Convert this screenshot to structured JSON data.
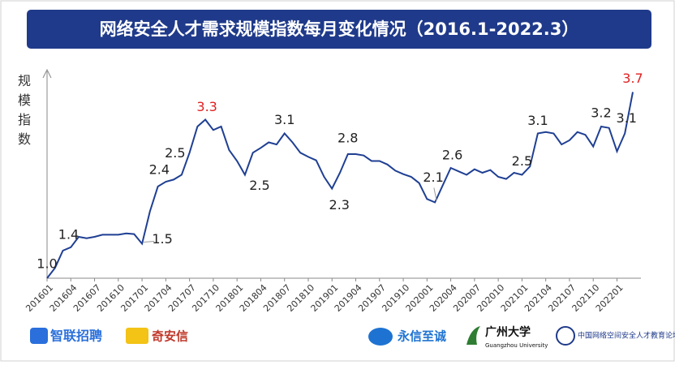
{
  "chart_data": {
    "type": "line",
    "title": "网络安全人才需求规模指数每月变化情况（2016.1-2022.3）",
    "y_label": "规模指数",
    "categories": [
      "201601",
      null,
      null,
      "201604",
      null,
      null,
      "201607",
      null,
      null,
      "201610",
      null,
      null,
      "201701",
      null,
      null,
      "201704",
      null,
      null,
      "201707",
      null,
      null,
      "201710",
      null,
      null,
      "201801",
      null,
      null,
      "201804",
      null,
      null,
      "201807",
      null,
      null,
      "201810",
      null,
      null,
      "201901",
      null,
      null,
      "201904",
      null,
      null,
      "201907",
      null,
      null,
      "201910",
      null,
      null,
      "202001",
      null,
      null,
      "202004",
      null,
      null,
      "202007",
      null,
      null,
      "202010",
      null,
      null,
      "202101",
      null,
      null,
      "202104",
      null,
      null,
      "202107",
      null,
      null,
      "202110",
      null,
      null,
      "202201",
      null,
      null
    ],
    "values": [
      1.0,
      1.15,
      1.4,
      1.45,
      1.6,
      1.58,
      1.6,
      1.63,
      1.63,
      1.63,
      1.65,
      1.64,
      1.5,
      1.97,
      2.33,
      2.4,
      2.43,
      2.5,
      2.82,
      3.2,
      3.3,
      3.15,
      3.2,
      2.86,
      2.7,
      2.5,
      2.82,
      2.89,
      2.97,
      2.94,
      3.1,
      2.97,
      2.82,
      2.76,
      2.71,
      2.47,
      2.3,
      2.53,
      2.8,
      2.8,
      2.78,
      2.7,
      2.7,
      2.65,
      2.56,
      2.51,
      2.47,
      2.38,
      2.15,
      2.1,
      2.35,
      2.6,
      2.55,
      2.5,
      2.58,
      2.53,
      2.57,
      2.47,
      2.44,
      2.53,
      2.5,
      2.62,
      3.1,
      3.12,
      3.1,
      2.94,
      3.0,
      3.12,
      3.08,
      2.91,
      3.2,
      3.18,
      2.84,
      3.1,
      3.7
    ],
    "value_labels": [
      "1.0",
      null,
      "1.4",
      null,
      null,
      null,
      null,
      null,
      null,
      null,
      null,
      null,
      "1.5",
      null,
      null,
      "2.4",
      null,
      "2.5",
      null,
      null,
      "3.3",
      null,
      null,
      null,
      null,
      "2.5",
      null,
      null,
      null,
      null,
      "3.1",
      null,
      null,
      null,
      null,
      null,
      "2.3",
      null,
      "2.8",
      null,
      null,
      null,
      null,
      null,
      null,
      null,
      null,
      null,
      null,
      "2.1",
      null,
      "2.6",
      null,
      null,
      null,
      null,
      null,
      null,
      null,
      null,
      "2.5",
      null,
      "3.1",
      null,
      null,
      null,
      null,
      null,
      null,
      null,
      "3.2",
      null,
      null,
      "3.1",
      "3.7"
    ],
    "value_label_colors": [
      "#222",
      null,
      "#222",
      null,
      null,
      null,
      null,
      null,
      null,
      null,
      null,
      null,
      "#222",
      null,
      null,
      "#222",
      null,
      "#222",
      null,
      null,
      "#e02020",
      null,
      null,
      null,
      null,
      "#222",
      null,
      null,
      null,
      null,
      "#222",
      null,
      null,
      null,
      null,
      null,
      "#222",
      null,
      "#222",
      null,
      null,
      null,
      null,
      null,
      null,
      null,
      null,
      null,
      null,
      "#222",
      null,
      "#222",
      null,
      null,
      null,
      null,
      null,
      null,
      null,
      null,
      "#222",
      null,
      "#222",
      null,
      null,
      null,
      null,
      null,
      null,
      null,
      "#222",
      null,
      null,
      "#222",
      "#e02020"
    ],
    "color": "#1f3f93",
    "ylim": [
      1,
      4
    ],
    "grid": false
  },
  "logos": [
    "智联招聘",
    "奇安信",
    "永信至诚",
    "广州大学",
    "Guangzhou University",
    "中国网络空间安全人才教育论坛"
  ]
}
